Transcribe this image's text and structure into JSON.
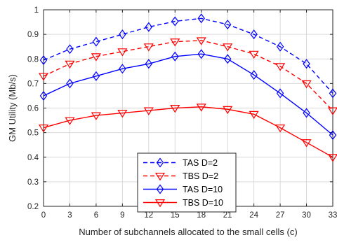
{
  "chart_data": {
    "type": "line",
    "xlabel": "Number of subchannels allocated to the small cells (c)",
    "ylabel": "GM Utility (Mb/s)",
    "xlim": [
      0,
      33
    ],
    "ylim": [
      0.2,
      1.0
    ],
    "xticks": [
      "0",
      "3",
      "6",
      "9",
      "12",
      "15",
      "18",
      "21",
      "24",
      "27",
      "30",
      "33"
    ],
    "yticks": [
      "0.2",
      "0.3",
      "0.4",
      "0.5",
      "0.6",
      "0.7",
      "0.8",
      "0.9",
      "1"
    ],
    "grid": true,
    "legend_position": "bottom-center",
    "x": [
      0,
      3,
      6,
      9,
      12,
      15,
      18,
      21,
      24,
      27,
      30,
      33
    ],
    "series": [
      {
        "name": "TAS D=2",
        "color": "#0000ff",
        "line_style": "dashed",
        "marker": "diamond",
        "values": [
          0.795,
          0.84,
          0.87,
          0.9,
          0.93,
          0.953,
          0.965,
          0.94,
          0.9,
          0.85,
          0.78,
          0.66
        ]
      },
      {
        "name": "TBS D=2",
        "color": "#ff0000",
        "line_style": "dashed",
        "marker": "triangle-down",
        "values": [
          0.73,
          0.78,
          0.81,
          0.83,
          0.85,
          0.87,
          0.875,
          0.85,
          0.82,
          0.77,
          0.7,
          0.59
        ]
      },
      {
        "name": "TAS D=10",
        "color": "#0000ff",
        "line_style": "solid",
        "marker": "diamond",
        "values": [
          0.65,
          0.7,
          0.73,
          0.76,
          0.78,
          0.81,
          0.82,
          0.8,
          0.735,
          0.66,
          0.58,
          0.49
        ]
      },
      {
        "name": "TBS D=10",
        "color": "#ff0000",
        "line_style": "solid",
        "marker": "triangle-down",
        "values": [
          0.52,
          0.55,
          0.57,
          0.58,
          0.59,
          0.6,
          0.605,
          0.595,
          0.575,
          0.52,
          0.46,
          0.4
        ]
      }
    ]
  }
}
